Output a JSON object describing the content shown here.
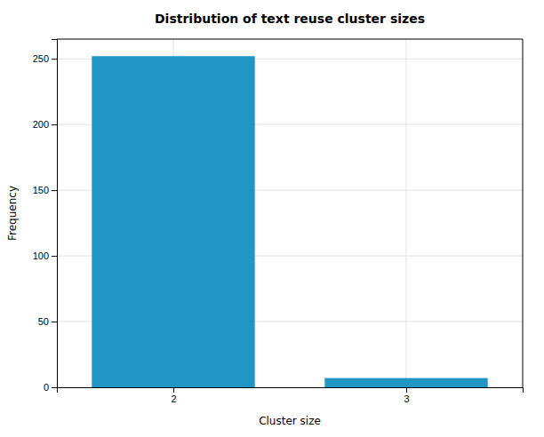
{
  "chart_data": {
    "type": "bar",
    "title": "Distribution of text reuse cluster sizes",
    "xlabel": "Cluster size",
    "ylabel": "Frequency",
    "x": [
      2,
      3
    ],
    "values": [
      252,
      7
    ],
    "color": "#2196c4",
    "xlim": [
      1.5,
      3.5
    ],
    "xticks": [
      2,
      3
    ],
    "ylim": [
      0,
      265
    ],
    "yticks": [
      0,
      50,
      100,
      150,
      200,
      250
    ],
    "grid": true
  }
}
